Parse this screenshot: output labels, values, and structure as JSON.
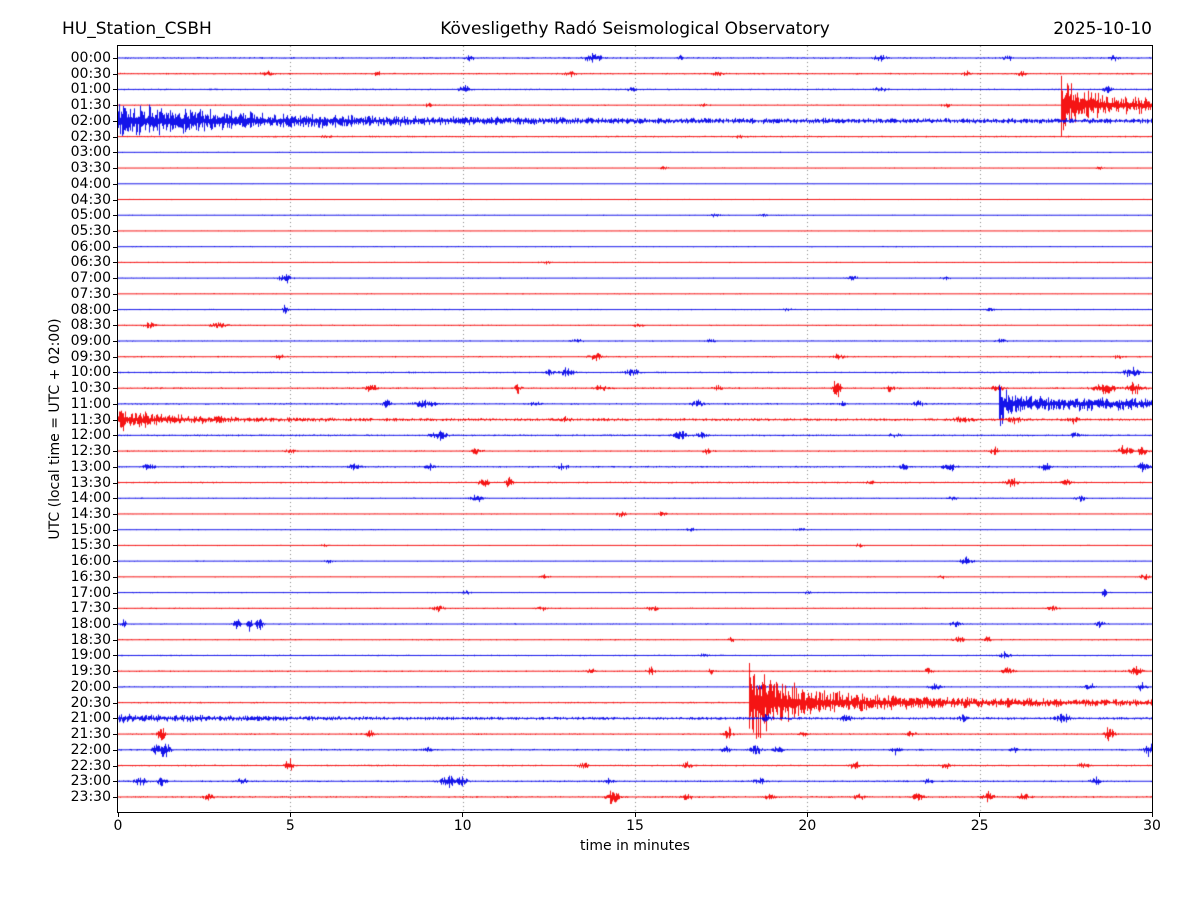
{
  "header": {
    "station": "HU_Station_CSBH",
    "observatory": "Kövesligethy Radó Seismological Observatory",
    "date": "2025-10-10"
  },
  "chart_data": {
    "type": "line",
    "subtype": "helicorder-seismogram",
    "title": "Kövesligethy Radó Seismological Observatory",
    "station": "HU_Station_CSBH",
    "date": "2025-10-10",
    "xlabel": "time in minutes",
    "ylabel": "UTC (local time = UTC + 02:00)",
    "xlim": [
      0,
      30
    ],
    "x_ticks": [
      0,
      5,
      10,
      15,
      20,
      25,
      30
    ],
    "grid": {
      "vertical_dotted_at_minutes": [
        5,
        10,
        15,
        20,
        25
      ],
      "color": "#888888"
    },
    "row_duration_min": 30,
    "n_rows": 48,
    "trace_colors": {
      "blue": "#0000e8",
      "red": "#f40000"
    },
    "rows": [
      {
        "label": "00:00",
        "color": "blue",
        "noise": 0.055
      },
      {
        "label": "00:30",
        "color": "red",
        "noise": 0.05
      },
      {
        "label": "01:00",
        "color": "blue",
        "noise": 0.05
      },
      {
        "label": "01:30",
        "color": "red",
        "noise": 0.045
      },
      {
        "label": "02:00",
        "color": "blue",
        "noise": 0.05
      },
      {
        "label": "02:30",
        "color": "red",
        "noise": 0.05
      },
      {
        "label": "03:00",
        "color": "blue",
        "noise": 0.04
      },
      {
        "label": "03:30",
        "color": "red",
        "noise": 0.04
      },
      {
        "label": "04:00",
        "color": "blue",
        "noise": 0.035
      },
      {
        "label": "04:30",
        "color": "red",
        "noise": 0.035
      },
      {
        "label": "05:00",
        "color": "blue",
        "noise": 0.04
      },
      {
        "label": "05:30",
        "color": "red",
        "noise": 0.038
      },
      {
        "label": "06:00",
        "color": "blue",
        "noise": 0.04
      },
      {
        "label": "06:30",
        "color": "red",
        "noise": 0.04
      },
      {
        "label": "07:00",
        "color": "blue",
        "noise": 0.04
      },
      {
        "label": "07:30",
        "color": "red",
        "noise": 0.042
      },
      {
        "label": "08:00",
        "color": "blue",
        "noise": 0.04
      },
      {
        "label": "08:30",
        "color": "red",
        "noise": 0.045
      },
      {
        "label": "09:00",
        "color": "blue",
        "noise": 0.045
      },
      {
        "label": "09:30",
        "color": "red",
        "noise": 0.048
      },
      {
        "label": "10:00",
        "color": "blue",
        "noise": 0.05
      },
      {
        "label": "10:30",
        "color": "red",
        "noise": 0.055
      },
      {
        "label": "11:00",
        "color": "blue",
        "noise": 0.055
      },
      {
        "label": "11:30",
        "color": "red",
        "noise": 0.055
      },
      {
        "label": "12:00",
        "color": "blue",
        "noise": 0.055
      },
      {
        "label": "12:30",
        "color": "red",
        "noise": 0.05
      },
      {
        "label": "13:00",
        "color": "blue",
        "noise": 0.055
      },
      {
        "label": "13:30",
        "color": "red",
        "noise": 0.05
      },
      {
        "label": "14:00",
        "color": "blue",
        "noise": 0.045
      },
      {
        "label": "14:30",
        "color": "red",
        "noise": 0.042
      },
      {
        "label": "15:00",
        "color": "blue",
        "noise": 0.04
      },
      {
        "label": "15:30",
        "color": "red",
        "noise": 0.038
      },
      {
        "label": "16:00",
        "color": "blue",
        "noise": 0.04
      },
      {
        "label": "16:30",
        "color": "red",
        "noise": 0.04
      },
      {
        "label": "17:00",
        "color": "blue",
        "noise": 0.04
      },
      {
        "label": "17:30",
        "color": "red",
        "noise": 0.045
      },
      {
        "label": "18:00",
        "color": "blue",
        "noise": 0.045
      },
      {
        "label": "18:30",
        "color": "red",
        "noise": 0.045
      },
      {
        "label": "19:00",
        "color": "blue",
        "noise": 0.045
      },
      {
        "label": "19:30",
        "color": "red",
        "noise": 0.05
      },
      {
        "label": "20:00",
        "color": "blue",
        "noise": 0.045
      },
      {
        "label": "20:30",
        "color": "red",
        "noise": 0.05
      },
      {
        "label": "21:00",
        "color": "blue",
        "noise": 0.06
      },
      {
        "label": "21:30",
        "color": "red",
        "noise": 0.05
      },
      {
        "label": "22:00",
        "color": "blue",
        "noise": 0.055
      },
      {
        "label": "22:30",
        "color": "red",
        "noise": 0.05
      },
      {
        "label": "23:00",
        "color": "blue",
        "noise": 0.055
      },
      {
        "label": "23:30",
        "color": "red",
        "noise": 0.055
      }
    ],
    "quakes": [
      {
        "row": "01:30",
        "onset": 27.35,
        "amp": 1.8,
        "tau": 0.4,
        "sustain": 0.55,
        "sustain_tau": 20
      },
      {
        "row": "02:00",
        "onset": 0,
        "amp": 0.95,
        "tau": 4.0,
        "sustain": 0.16,
        "sustain_tau": 60
      },
      {
        "row": "11:00",
        "onset": 25.55,
        "amp": 1.1,
        "tau": 0.25,
        "sustain": 0.4,
        "sustain_tau": 25
      },
      {
        "row": "11:30",
        "onset": 0,
        "amp": 0.6,
        "tau": 1.8,
        "sustain": 0.05,
        "sustain_tau": 30
      },
      {
        "row": "20:30",
        "onset": 18.3,
        "amp": 2.2,
        "tau": 1.1,
        "sustain": 0.5,
        "sustain_tau": 10
      },
      {
        "row": "21:00",
        "onset": 0,
        "amp": 0.2,
        "tau": 4.0,
        "sustain": 0.03,
        "sustain_tau": 60
      }
    ],
    "burst_format": [
      "row",
      "center_min",
      "sigma_min",
      "amp_row_units"
    ],
    "bursts": [
      [
        "00:00",
        10.2,
        0.08,
        0.15
      ],
      [
        "00:00",
        13.6,
        0.08,
        0.2
      ],
      [
        "00:00",
        13.85,
        0.12,
        0.3
      ],
      [
        "00:00",
        16.3,
        0.06,
        0.15
      ],
      [
        "00:00",
        22.1,
        0.12,
        0.22
      ],
      [
        "00:00",
        25.8,
        0.1,
        0.15
      ],
      [
        "00:00",
        28.9,
        0.08,
        0.18
      ],
      [
        "00:30",
        4.3,
        0.1,
        0.2
      ],
      [
        "00:30",
        7.5,
        0.08,
        0.15
      ],
      [
        "00:30",
        13.1,
        0.1,
        0.2
      ],
      [
        "00:30",
        17.4,
        0.1,
        0.15
      ],
      [
        "00:30",
        24.6,
        0.08,
        0.15
      ],
      [
        "00:30",
        26.2,
        0.08,
        0.22
      ],
      [
        "01:00",
        10.05,
        0.1,
        0.28
      ],
      [
        "01:00",
        14.9,
        0.08,
        0.15
      ],
      [
        "01:00",
        22.1,
        0.1,
        0.2
      ],
      [
        "01:00",
        28.7,
        0.08,
        0.3
      ],
      [
        "01:30",
        9.0,
        0.08,
        0.12
      ],
      [
        "01:30",
        17.0,
        0.08,
        0.12
      ],
      [
        "01:30",
        24.0,
        0.08,
        0.12
      ],
      [
        "02:30",
        6.0,
        0.1,
        0.1
      ],
      [
        "02:30",
        18.0,
        0.1,
        0.08
      ],
      [
        "03:30",
        15.8,
        0.08,
        0.12
      ],
      [
        "03:30",
        28.5,
        0.08,
        0.1
      ],
      [
        "05:00",
        17.3,
        0.1,
        0.1
      ],
      [
        "05:00",
        18.7,
        0.08,
        0.1
      ],
      [
        "06:30",
        12.4,
        0.08,
        0.1
      ],
      [
        "07:00",
        4.85,
        0.12,
        0.28
      ],
      [
        "07:00",
        21.3,
        0.1,
        0.15
      ],
      [
        "07:00",
        24.0,
        0.08,
        0.12
      ],
      [
        "08:00",
        4.85,
        0.05,
        0.38
      ],
      [
        "08:00",
        19.4,
        0.08,
        0.12
      ],
      [
        "08:00",
        25.3,
        0.08,
        0.12
      ],
      [
        "08:30",
        0.9,
        0.1,
        0.2
      ],
      [
        "08:30",
        2.9,
        0.15,
        0.2
      ],
      [
        "08:30",
        15.1,
        0.1,
        0.12
      ],
      [
        "09:00",
        13.3,
        0.1,
        0.12
      ],
      [
        "09:00",
        17.2,
        0.08,
        0.12
      ],
      [
        "09:00",
        25.6,
        0.1,
        0.12
      ],
      [
        "09:30",
        4.7,
        0.08,
        0.15
      ],
      [
        "09:30",
        13.85,
        0.12,
        0.28
      ],
      [
        "09:30",
        20.9,
        0.1,
        0.18
      ],
      [
        "09:30",
        29.0,
        0.08,
        0.12
      ],
      [
        "10:00",
        12.5,
        0.08,
        0.2
      ],
      [
        "10:00",
        13.0,
        0.15,
        0.25
      ],
      [
        "10:00",
        14.9,
        0.12,
        0.25
      ],
      [
        "10:00",
        29.4,
        0.15,
        0.3
      ],
      [
        "10:30",
        7.35,
        0.1,
        0.28
      ],
      [
        "10:30",
        11.6,
        0.06,
        0.3
      ],
      [
        "10:30",
        14.0,
        0.1,
        0.2
      ],
      [
        "10:30",
        17.4,
        0.08,
        0.18
      ],
      [
        "10:30",
        20.85,
        0.07,
        0.75
      ],
      [
        "10:30",
        22.4,
        0.08,
        0.2
      ],
      [
        "10:30",
        25.5,
        0.1,
        0.22
      ],
      [
        "10:30",
        28.6,
        0.2,
        0.4
      ],
      [
        "10:30",
        29.5,
        0.15,
        0.38
      ],
      [
        "11:00",
        7.8,
        0.08,
        0.28
      ],
      [
        "11:00",
        8.9,
        0.2,
        0.22
      ],
      [
        "11:00",
        12.1,
        0.1,
        0.15
      ],
      [
        "11:00",
        16.8,
        0.1,
        0.22
      ],
      [
        "11:00",
        21.0,
        0.06,
        0.18
      ],
      [
        "11:00",
        23.2,
        0.1,
        0.18
      ],
      [
        "11:30",
        13.0,
        0.1,
        0.12
      ],
      [
        "11:30",
        24.5,
        0.2,
        0.18
      ],
      [
        "11:30",
        26.0,
        0.15,
        0.18
      ],
      [
        "11:30",
        27.7,
        0.1,
        0.18
      ],
      [
        "12:00",
        9.3,
        0.15,
        0.28
      ],
      [
        "12:00",
        16.3,
        0.12,
        0.28
      ],
      [
        "12:00",
        16.9,
        0.1,
        0.22
      ],
      [
        "12:00",
        22.5,
        0.1,
        0.15
      ],
      [
        "12:00",
        27.8,
        0.1,
        0.18
      ],
      [
        "12:30",
        5.0,
        0.1,
        0.15
      ],
      [
        "12:30",
        10.4,
        0.1,
        0.18
      ],
      [
        "12:30",
        17.1,
        0.08,
        0.18
      ],
      [
        "12:30",
        25.4,
        0.1,
        0.22
      ],
      [
        "12:30",
        29.2,
        0.12,
        0.38
      ],
      [
        "12:30",
        29.7,
        0.1,
        0.3
      ],
      [
        "13:00",
        0.9,
        0.1,
        0.22
      ],
      [
        "13:00",
        6.85,
        0.1,
        0.28
      ],
      [
        "13:00",
        9.0,
        0.1,
        0.18
      ],
      [
        "13:00",
        12.9,
        0.1,
        0.18
      ],
      [
        "13:00",
        22.8,
        0.08,
        0.18
      ],
      [
        "13:00",
        24.1,
        0.12,
        0.28
      ],
      [
        "13:00",
        26.9,
        0.1,
        0.22
      ],
      [
        "13:00",
        29.75,
        0.1,
        0.45
      ],
      [
        "13:30",
        10.6,
        0.1,
        0.28
      ],
      [
        "13:30",
        11.35,
        0.08,
        0.32
      ],
      [
        "13:30",
        21.8,
        0.08,
        0.15
      ],
      [
        "13:30",
        25.9,
        0.12,
        0.28
      ],
      [
        "13:30",
        27.5,
        0.1,
        0.18
      ],
      [
        "14:00",
        10.4,
        0.12,
        0.22
      ],
      [
        "14:00",
        24.2,
        0.08,
        0.12
      ],
      [
        "14:00",
        27.9,
        0.1,
        0.18
      ],
      [
        "14:30",
        14.6,
        0.1,
        0.16
      ],
      [
        "14:30",
        15.8,
        0.1,
        0.14
      ],
      [
        "15:00",
        16.6,
        0.08,
        0.13
      ],
      [
        "15:00",
        19.8,
        0.08,
        0.13
      ],
      [
        "15:30",
        6.0,
        0.08,
        0.1
      ],
      [
        "15:30",
        21.5,
        0.08,
        0.1
      ],
      [
        "16:00",
        6.1,
        0.08,
        0.14
      ],
      [
        "16:00",
        24.6,
        0.12,
        0.22
      ],
      [
        "16:30",
        12.4,
        0.08,
        0.13
      ],
      [
        "16:30",
        23.9,
        0.08,
        0.13
      ],
      [
        "16:30",
        29.8,
        0.1,
        0.18
      ],
      [
        "17:00",
        10.1,
        0.08,
        0.13
      ],
      [
        "17:00",
        20.0,
        0.06,
        0.12
      ],
      [
        "17:00",
        28.6,
        0.06,
        0.28
      ],
      [
        "17:30",
        9.3,
        0.1,
        0.18
      ],
      [
        "17:30",
        12.3,
        0.08,
        0.14
      ],
      [
        "17:30",
        15.5,
        0.1,
        0.18
      ],
      [
        "17:30",
        27.1,
        0.1,
        0.16
      ],
      [
        "18:00",
        0.15,
        0.05,
        0.28
      ],
      [
        "18:00",
        3.45,
        0.06,
        0.38
      ],
      [
        "18:00",
        3.8,
        0.05,
        0.5
      ],
      [
        "18:00",
        4.1,
        0.06,
        0.65
      ],
      [
        "18:00",
        24.3,
        0.1,
        0.18
      ],
      [
        "18:00",
        28.5,
        0.1,
        0.18
      ],
      [
        "18:30",
        17.8,
        0.08,
        0.13
      ],
      [
        "18:30",
        24.4,
        0.1,
        0.18
      ],
      [
        "18:30",
        25.2,
        0.08,
        0.18
      ],
      [
        "19:00",
        17.0,
        0.08,
        0.14
      ],
      [
        "19:00",
        25.7,
        0.1,
        0.22
      ],
      [
        "19:30",
        13.7,
        0.08,
        0.18
      ],
      [
        "19:30",
        15.45,
        0.08,
        0.28
      ],
      [
        "19:30",
        17.2,
        0.06,
        0.18
      ],
      [
        "19:30",
        23.5,
        0.08,
        0.18
      ],
      [
        "19:30",
        25.8,
        0.1,
        0.22
      ],
      [
        "19:30",
        29.5,
        0.12,
        0.28
      ],
      [
        "20:00",
        18.6,
        0.1,
        0.15
      ],
      [
        "20:00",
        23.7,
        0.1,
        0.22
      ],
      [
        "20:00",
        28.2,
        0.1,
        0.18
      ],
      [
        "20:00",
        29.7,
        0.1,
        0.28
      ],
      [
        "21:00",
        18.8,
        0.1,
        0.2
      ],
      [
        "21:00",
        21.1,
        0.1,
        0.18
      ],
      [
        "21:00",
        24.5,
        0.1,
        0.15
      ],
      [
        "21:00",
        27.4,
        0.12,
        0.28
      ],
      [
        "21:30",
        1.25,
        0.07,
        0.45
      ],
      [
        "21:30",
        7.3,
        0.1,
        0.2
      ],
      [
        "21:30",
        17.7,
        0.07,
        0.42
      ],
      [
        "21:30",
        19.9,
        0.08,
        0.2
      ],
      [
        "21:30",
        23.0,
        0.08,
        0.18
      ],
      [
        "21:30",
        28.75,
        0.1,
        0.45
      ],
      [
        "22:00",
        1.1,
        0.08,
        0.3
      ],
      [
        "22:00",
        1.35,
        0.1,
        0.48
      ],
      [
        "22:00",
        9.0,
        0.1,
        0.15
      ],
      [
        "22:00",
        17.6,
        0.08,
        0.28
      ],
      [
        "22:00",
        18.5,
        0.1,
        0.32
      ],
      [
        "22:00",
        19.15,
        0.08,
        0.28
      ],
      [
        "22:00",
        22.55,
        0.08,
        0.28
      ],
      [
        "22:00",
        26.0,
        0.08,
        0.2
      ],
      [
        "22:00",
        29.9,
        0.1,
        0.38
      ],
      [
        "22:30",
        4.95,
        0.07,
        0.45
      ],
      [
        "22:30",
        13.5,
        0.1,
        0.18
      ],
      [
        "22:30",
        16.5,
        0.1,
        0.18
      ],
      [
        "22:30",
        21.35,
        0.08,
        0.32
      ],
      [
        "22:30",
        24.0,
        0.1,
        0.18
      ],
      [
        "22:30",
        28.0,
        0.1,
        0.18
      ],
      [
        "23:00",
        0.65,
        0.1,
        0.32
      ],
      [
        "23:00",
        1.25,
        0.08,
        0.28
      ],
      [
        "23:00",
        3.6,
        0.1,
        0.18
      ],
      [
        "23:00",
        9.55,
        0.15,
        0.38
      ],
      [
        "23:00",
        9.95,
        0.1,
        0.32
      ],
      [
        "23:00",
        14.2,
        0.1,
        0.18
      ],
      [
        "23:00",
        18.6,
        0.1,
        0.18
      ],
      [
        "23:00",
        23.5,
        0.08,
        0.18
      ],
      [
        "23:00",
        28.35,
        0.08,
        0.32
      ],
      [
        "23:30",
        2.6,
        0.1,
        0.22
      ],
      [
        "23:30",
        14.35,
        0.12,
        0.45
      ],
      [
        "23:30",
        16.5,
        0.1,
        0.25
      ],
      [
        "23:30",
        18.9,
        0.1,
        0.22
      ],
      [
        "23:30",
        21.5,
        0.1,
        0.18
      ],
      [
        "23:30",
        23.2,
        0.1,
        0.25
      ],
      [
        "23:30",
        25.25,
        0.1,
        0.4
      ],
      [
        "23:30",
        26.3,
        0.1,
        0.25
      ]
    ]
  }
}
